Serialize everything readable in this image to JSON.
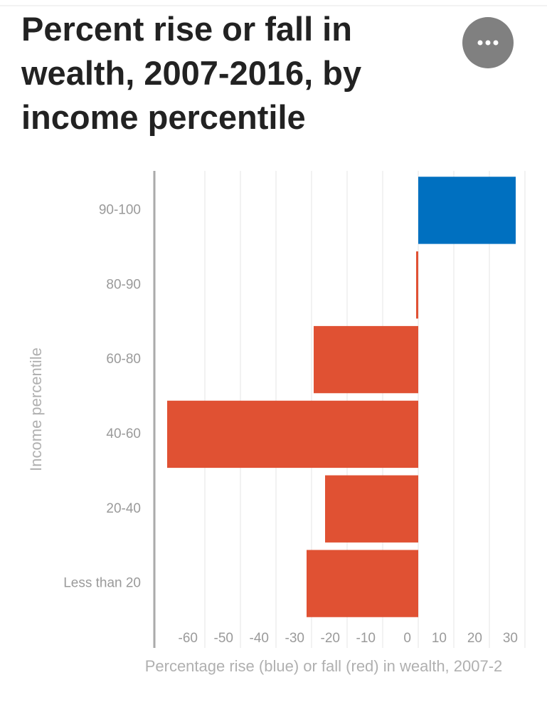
{
  "chart_data": {
    "type": "bar",
    "orientation": "horizontal",
    "title": "Percent rise or fall in wealth, 2007-2016, by income percentile",
    "x_label": "Percentage rise (blue) or fall (red) in wealth, 2007-2",
    "y_label": "Income percentile",
    "categories": [
      "90-100",
      "80-90",
      "60-80",
      "40-60",
      "20-40",
      "Less than 20"
    ],
    "values": [
      27.4,
      -0.6,
      -29.4,
      -70.6,
      -26.2,
      -31.4
    ],
    "colors": [
      "#0070c0",
      "#e05133",
      "#e05133",
      "#e05133",
      "#e05133",
      "#e05133"
    ],
    "xlim": [
      -74,
      31
    ],
    "xticks": [
      -60,
      -50,
      -40,
      -30,
      -20,
      -10,
      0,
      10,
      20,
      30
    ],
    "grid": true
  }
}
